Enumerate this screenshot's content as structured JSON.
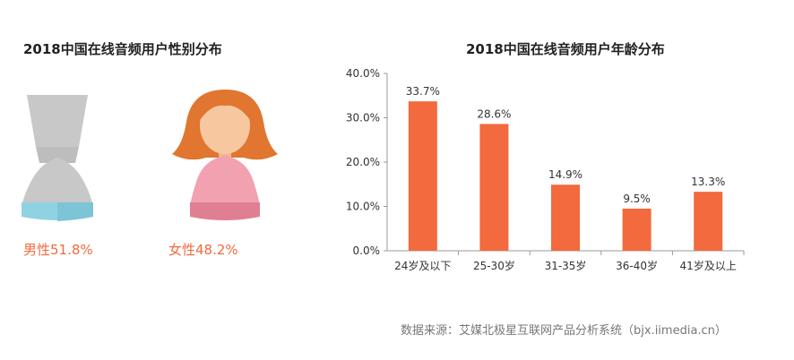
{
  "gender": {
    "title": "2018中国在线音频用户性别分布",
    "male_label": "男性51.8%",
    "female_label": "女性48.2%"
  },
  "source": "数据来源：艾媒北极星互联网产品分析系统（bjx.iimedia.cn）",
  "colors": {
    "bar": "#f26a3d",
    "male_body": "#c8c8c8",
    "male_base": "#8fd3e3",
    "female_hair": "#e0762f",
    "female_body": "#f2a1b1",
    "female_skin": "#f7c8a0"
  },
  "chart_data": {
    "type": "bar",
    "title": "2018中国在线音频用户年龄分布",
    "categories": [
      "24岁及以下",
      "25-30岁",
      "31-35岁",
      "36-40岁",
      "41岁及以上"
    ],
    "values": [
      33.7,
      28.6,
      14.9,
      9.5,
      13.3
    ],
    "data_labels": [
      "33.7%",
      "28.6%",
      "14.9%",
      "9.5%",
      "13.3%"
    ],
    "yticks": [
      "0.0%",
      "10.0%",
      "20.0%",
      "30.0%",
      "40.0%"
    ],
    "ylim": [
      0,
      40
    ],
    "xlabel": "",
    "ylabel": "",
    "grid": false
  }
}
